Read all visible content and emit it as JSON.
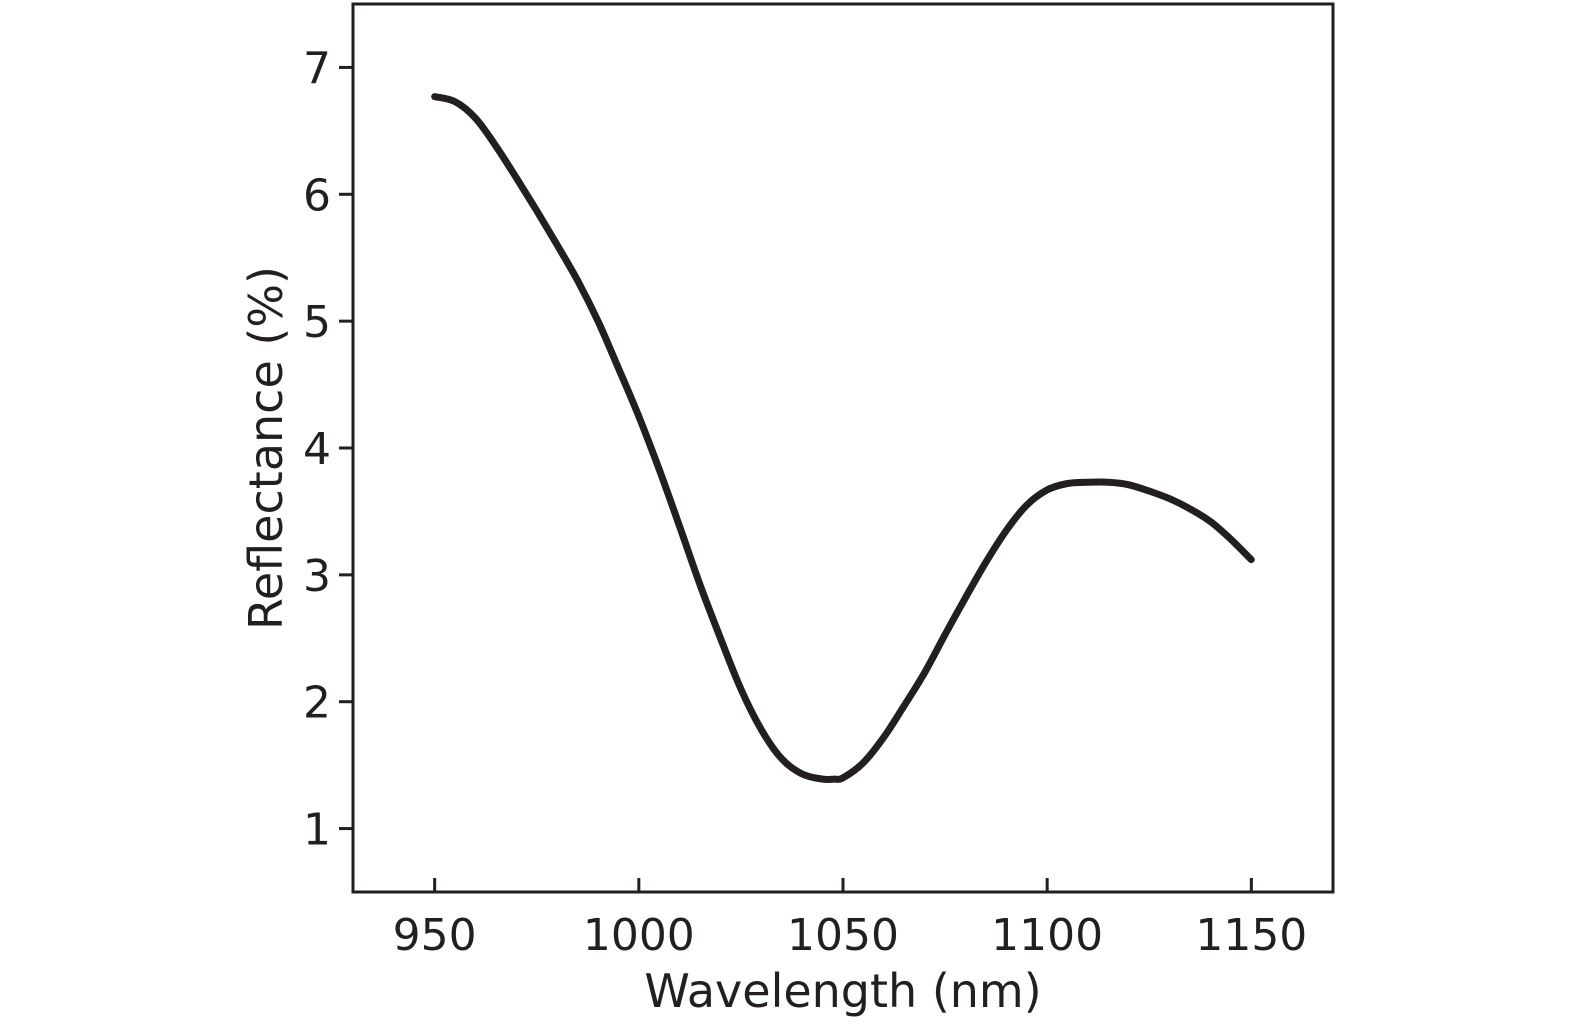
{
  "chart_data": {
    "type": "line",
    "title": "",
    "xlabel": "Wavelength (nm)",
    "ylabel": "Reflectance (%)",
    "xlim": [
      930,
      1170
    ],
    "ylim": [
      0.5,
      7.5
    ],
    "xticks": [
      950,
      1000,
      1050,
      1100,
      1150
    ],
    "yticks": [
      1,
      2,
      3,
      4,
      5,
      6,
      7
    ],
    "grid": false,
    "legend": "none",
    "line_color": "#231f20",
    "series": [
      {
        "x": [
          950,
          955,
          960,
          965,
          970,
          975,
          980,
          985,
          990,
          995,
          1000,
          1005,
          1010,
          1015,
          1020,
          1025,
          1030,
          1035,
          1040,
          1045,
          1048,
          1050,
          1055,
          1060,
          1065,
          1070,
          1075,
          1080,
          1085,
          1090,
          1095,
          1100,
          1105,
          1110,
          1115,
          1120,
          1125,
          1130,
          1135,
          1140,
          1145,
          1150
        ],
        "y": [
          6.77,
          6.73,
          6.6,
          6.38,
          6.13,
          5.87,
          5.6,
          5.32,
          5.0,
          4.63,
          4.25,
          3.83,
          3.38,
          2.92,
          2.5,
          2.1,
          1.78,
          1.55,
          1.43,
          1.39,
          1.39,
          1.4,
          1.52,
          1.72,
          1.97,
          2.23,
          2.53,
          2.82,
          3.1,
          3.35,
          3.55,
          3.67,
          3.72,
          3.73,
          3.73,
          3.71,
          3.66,
          3.6,
          3.52,
          3.42,
          3.28,
          3.12
        ]
      }
    ]
  }
}
